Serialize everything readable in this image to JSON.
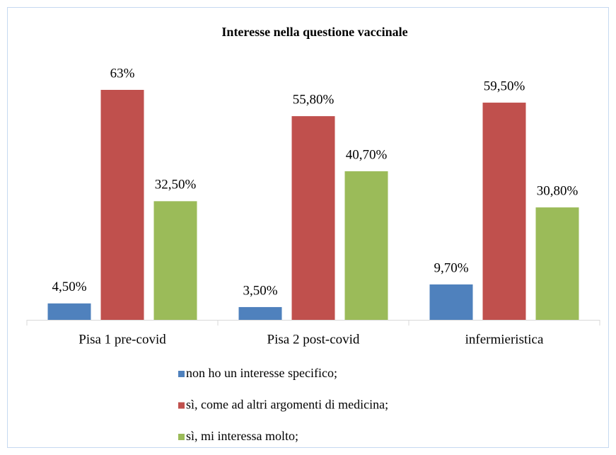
{
  "chart_data": {
    "type": "bar",
    "title": "Interesse nella questione vaccinale",
    "categories": [
      "Pisa 1 pre-covid",
      "Pisa 2 post-covid",
      "infermieristica"
    ],
    "series": [
      {
        "name": "non ho un interesse specifico;",
        "color": "#4f81bd",
        "values": [
          4.5,
          3.5,
          9.7
        ],
        "value_labels": [
          "4,50%",
          "3,50%",
          "9,70%"
        ]
      },
      {
        "name": "sì, come ad altri argomenti di medicina;",
        "color": "#c0504d",
        "values": [
          63,
          55.8,
          59.5
        ],
        "value_labels": [
          "63%",
          "55,80%",
          "59,50%"
        ]
      },
      {
        "name": "sì, mi interessa molto;",
        "color": "#9bbb59",
        "values": [
          32.5,
          40.7,
          30.8
        ],
        "value_labels": [
          "32,50%",
          "40,70%",
          "30,80%"
        ]
      }
    ],
    "legend": "bottom"
  }
}
